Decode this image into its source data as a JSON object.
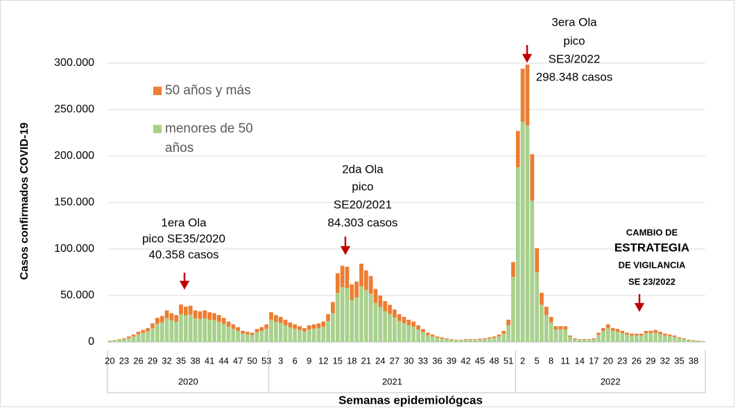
{
  "chart_data": {
    "type": "stacked_bar",
    "y_axis_title": "Casos confirmados COVID-19",
    "x_axis_title": "Semanas epidemiológcas",
    "ylim": [
      0,
      300000
    ],
    "yticks": [
      0,
      {
        "value": 50000,
        "label": "50.000"
      },
      {
        "value": 100000,
        "label": "100.000"
      },
      {
        "value": 150000,
        "label": "150.000"
      },
      {
        "value": 200000,
        "label": "200.000"
      },
      {
        "value": 250000,
        "label": "250.000"
      },
      {
        "value": 300000,
        "label": "300.000"
      }
    ],
    "grid": true,
    "category_groups": [
      {
        "label": "2020",
        "categories": [
          "20",
          null,
          null,
          "23",
          null,
          null,
          "26",
          null,
          null,
          "29",
          null,
          null,
          "32",
          null,
          null,
          "35",
          null,
          null,
          "38",
          null,
          null,
          "41",
          null,
          null,
          "44",
          null,
          null,
          "47",
          null,
          null,
          "50",
          null,
          null,
          "53"
        ]
      },
      {
        "label": "2021",
        "categories": [
          null,
          null,
          "3",
          null,
          null,
          "6",
          null,
          null,
          "9",
          null,
          null,
          "12",
          null,
          null,
          "15",
          null,
          null,
          "18",
          null,
          null,
          "21",
          null,
          null,
          "24",
          null,
          null,
          "27",
          null,
          null,
          "30",
          null,
          null,
          "33",
          null,
          null,
          "36",
          null,
          null,
          "39",
          null,
          null,
          "42",
          null,
          null,
          "45",
          null,
          null,
          "48",
          null,
          null,
          "51",
          null
        ]
      },
      {
        "label": "2022",
        "categories": [
          null,
          "2",
          null,
          null,
          "5",
          null,
          null,
          "8",
          null,
          null,
          "11",
          null,
          null,
          "14",
          null,
          null,
          "17",
          null,
          null,
          "20",
          null,
          null,
          "23",
          null,
          null,
          "26",
          null,
          null,
          "29",
          null,
          null,
          "32",
          null,
          null,
          "35",
          null,
          null,
          "38",
          null,
          null
        ]
      }
    ],
    "series": [
      {
        "name": "menores de 50 años",
        "color": "#a9d18e",
        "values": [
          1100,
          1500,
          2300,
          3000,
          4500,
          6000,
          8300,
          9800,
          11300,
          15000,
          19500,
          21000,
          25500,
          23300,
          21800,
          29800,
          28500,
          29300,
          25500,
          24800,
          25500,
          24000,
          23300,
          21800,
          19500,
          16500,
          14300,
          12000,
          9000,
          8300,
          7500,
          10500,
          12000,
          14300,
          24000,
          21800,
          20300,
          18000,
          15800,
          14300,
          12800,
          11300,
          13500,
          14300,
          15000,
          16500,
          22500,
          31000,
          53000,
          59000,
          58000,
          45000,
          48000,
          60000,
          56000,
          52000,
          42000,
          37500,
          33000,
          30000,
          26300,
          22500,
          20300,
          18000,
          16500,
          13500,
          10500,
          7500,
          6000,
          4500,
          3800,
          3000,
          2300,
          1900,
          1900,
          2300,
          2300,
          2300,
          2600,
          3000,
          3800,
          4500,
          6000,
          9000,
          18000,
          70000,
          188000,
          237000,
          233000,
          152000,
          75000,
          40000,
          29000,
          21000,
          13500,
          13500,
          13500,
          5500,
          3100,
          2300,
          2300,
          2300,
          3100,
          8000,
          12000,
          15000,
          12000,
          11000,
          9500,
          8000,
          7000,
          7000,
          7000,
          9500,
          9500,
          10000,
          8500,
          7000,
          6200,
          5500,
          3900,
          3100,
          1900,
          1500,
          1100,
          800
        ]
      },
      {
        "name": "50 años y más",
        "color": "#ed7d31",
        "values": [
          400,
          500,
          700,
          1000,
          1500,
          2000,
          2700,
          3200,
          3700,
          5000,
          6500,
          7000,
          8500,
          7700,
          7200,
          10558,
          9500,
          9700,
          8500,
          8200,
          8500,
          8000,
          7700,
          7200,
          6500,
          5500,
          4700,
          4000,
          3000,
          2700,
          2500,
          3500,
          4000,
          4700,
          8000,
          7200,
          6700,
          6000,
          5200,
          4700,
          4200,
          3700,
          4500,
          4700,
          5000,
          5500,
          7500,
          12000,
          21000,
          23000,
          23000,
          17000,
          17000,
          24303,
          21000,
          19000,
          15000,
          12500,
          11000,
          10000,
          8700,
          7500,
          6700,
          6000,
          5500,
          4500,
          3500,
          2500,
          2000,
          1500,
          1200,
          1000,
          700,
          600,
          600,
          700,
          700,
          700,
          900,
          1000,
          1200,
          1500,
          2000,
          3000,
          6000,
          16000,
          39000,
          57000,
          65348,
          50000,
          26000,
          13000,
          9000,
          6000,
          3500,
          3500,
          3500,
          1500,
          900,
          700,
          700,
          700,
          900,
          2000,
          3000,
          4000,
          3000,
          3000,
          2500,
          2000,
          2000,
          2000,
          2000,
          2500,
          2500,
          3000,
          2500,
          2000,
          1800,
          1500,
          1100,
          900,
          600,
          500,
          400,
          200
        ]
      }
    ],
    "annotations": [
      {
        "lines": [
          "1era Ola",
          "pico SE35/2020",
          "40.358 casos"
        ]
      },
      {
        "lines": [
          "2da Ola",
          "pico",
          "SE20/2021",
          "84.303 casos"
        ]
      },
      {
        "lines": [
          "3era Ola",
          "pico",
          "SE3/2022",
          "298.348 casos"
        ]
      },
      {
        "lines": [
          "CAMBIO DE",
          "ESTRATEGIA",
          "DE VIGILANCIA",
          "SE 23/2022"
        ]
      }
    ]
  }
}
